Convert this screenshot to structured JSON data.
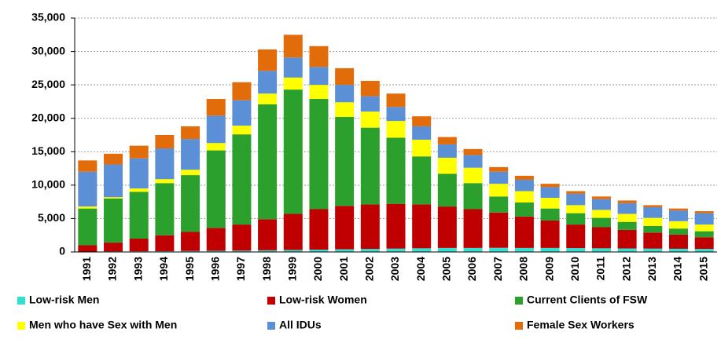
{
  "chart_data": {
    "type": "stacked_bar",
    "categories": [
      "1991",
      "1992",
      "1993",
      "1994",
      "1995",
      "1996",
      "1997",
      "1998",
      "1999",
      "2000",
      "2001",
      "2002",
      "2003",
      "2004",
      "2005",
      "2006",
      "2007",
      "2008",
      "2009",
      "2010",
      "2011",
      "2012",
      "2013",
      "2014",
      "2015"
    ],
    "series": [
      {
        "name": "Low-risk Men",
        "color": "#33e0d0",
        "values": [
          50,
          80,
          100,
          120,
          150,
          180,
          200,
          250,
          300,
          350,
          400,
          450,
          500,
          550,
          600,
          600,
          620,
          600,
          600,
          580,
          550,
          520,
          500,
          480,
          450
        ]
      },
      {
        "name": "Low-risk Women",
        "color": "#c00000",
        "values": [
          950,
          1320,
          1900,
          2380,
          2850,
          3420,
          3900,
          4650,
          5400,
          6050,
          6500,
          6650,
          6700,
          6550,
          6200,
          5800,
          5280,
          4700,
          4100,
          3520,
          3150,
          2780,
          2400,
          2120,
          1750
        ]
      },
      {
        "name": "Current Clients of FSW",
        "color": "#2ca02c",
        "values": [
          5500,
          6600,
          7000,
          7800,
          8500,
          11600,
          13500,
          17200,
          18600,
          16500,
          13300,
          11500,
          9900,
          7200,
          4900,
          3900,
          2400,
          2100,
          1800,
          1700,
          1400,
          1200,
          1000,
          900,
          900
        ]
      },
      {
        "name": "Men who have Sex with Men",
        "color": "#ffff00",
        "values": [
          300,
          200,
          500,
          600,
          800,
          1100,
          1300,
          1600,
          1800,
          2100,
          2200,
          2400,
          2500,
          2500,
          2400,
          2300,
          1900,
          1700,
          1600,
          1200,
          1200,
          1200,
          1200,
          1100,
          1000
        ]
      },
      {
        "name": "All IDUs",
        "color": "#5b8fd6",
        "values": [
          5200,
          4900,
          4500,
          4600,
          4600,
          4100,
          3800,
          3400,
          3000,
          2700,
          2600,
          2300,
          2100,
          2000,
          2000,
          1900,
          1800,
          1700,
          1600,
          1700,
          1600,
          1600,
          1600,
          1600,
          1700
        ]
      },
      {
        "name": "Female Sex Workers",
        "color": "#e36c0a",
        "values": [
          1700,
          1600,
          1900,
          2000,
          1900,
          2500,
          2700,
          3200,
          3400,
          3100,
          2500,
          2300,
          2000,
          1500,
          1100,
          900,
          700,
          600,
          500,
          400,
          400,
          400,
          300,
          300,
          300
        ]
      }
    ],
    "ylim": [
      0,
      35000
    ],
    "yticks": [
      0,
      {
        "value": 5000,
        "label": "5,000"
      },
      {
        "value": 10000,
        "label": "10,000"
      },
      {
        "value": 15000,
        "label": "15,000"
      },
      {
        "value": 20000,
        "label": "20,000"
      },
      {
        "value": 25000,
        "label": "25,000"
      },
      {
        "value": 30000,
        "label": "30,000"
      },
      {
        "value": 35000,
        "label": "35,000"
      }
    ],
    "grid": true
  }
}
